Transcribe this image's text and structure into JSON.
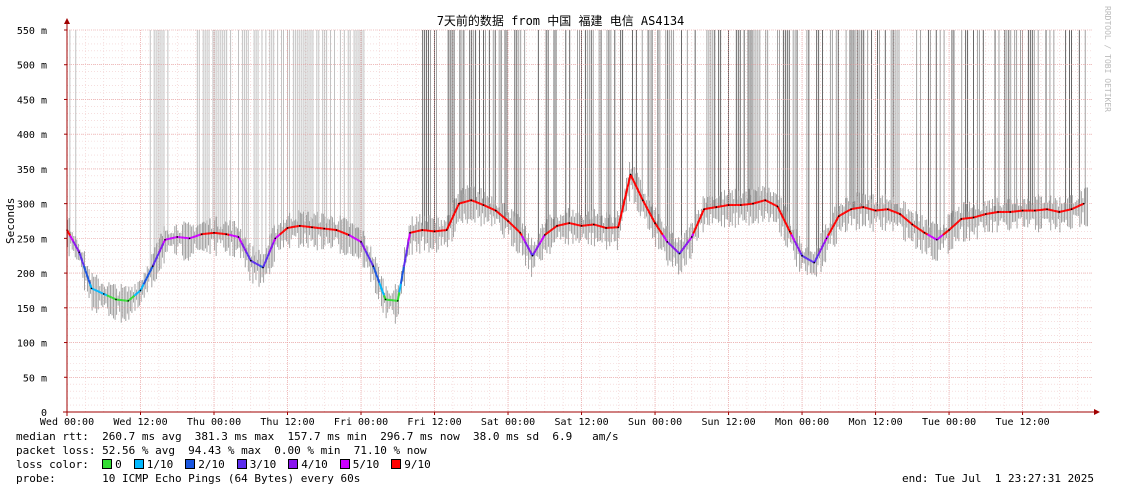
{
  "chart_data": {
    "type": "line",
    "title": "7天前的数据 from 中国 福建 电信 AS4134",
    "ylabel": "Seconds",
    "ylim": [
      0,
      0.55
    ],
    "y_ticks": [
      "0",
      "50 m",
      "100 m",
      "150 m",
      "200 m",
      "250 m",
      "300 m",
      "350 m",
      "400 m",
      "450 m",
      "500 m",
      "550 m"
    ],
    "x_ticks": [
      "Wed 00:00",
      "Wed 12:00",
      "Thu 00:00",
      "Thu 12:00",
      "Fri 00:00",
      "Fri 12:00",
      "Sat 00:00",
      "Sat 12:00",
      "Sun 00:00",
      "Sun 12:00",
      "Mon 00:00",
      "Mon 12:00",
      "Tue 00:00",
      "Tue 12:00"
    ],
    "x_hours": [
      0,
      12,
      24,
      36,
      48,
      60,
      72,
      84,
      96,
      108,
      120,
      132,
      144,
      156
    ],
    "xlim_hours": [
      0,
      167.5
    ],
    "grid": true,
    "series": [
      {
        "name": "median rtt",
        "unit": "ms",
        "x_hours": [
          0,
          2,
          4,
          6,
          8,
          10,
          12,
          14,
          16,
          18,
          20,
          22,
          24,
          26,
          28,
          30,
          32,
          34,
          36,
          38,
          40,
          42,
          44,
          46,
          48,
          50,
          52,
          54,
          56,
          58,
          60,
          62,
          64,
          66,
          68,
          70,
          72,
          74,
          76,
          78,
          80,
          82,
          84,
          86,
          88,
          90,
          92,
          94,
          96,
          98,
          100,
          102,
          104,
          106,
          108,
          110,
          112,
          114,
          116,
          118,
          120,
          122,
          124,
          126,
          128,
          130,
          132,
          134,
          136,
          138,
          140,
          142,
          144,
          146,
          148,
          150,
          152,
          154,
          156,
          158,
          160,
          162,
          164,
          166
        ],
        "values": [
          262,
          230,
          178,
          170,
          162,
          160,
          175,
          210,
          248,
          252,
          250,
          256,
          258,
          256,
          252,
          218,
          208,
          250,
          265,
          268,
          266,
          264,
          262,
          255,
          245,
          210,
          162,
          160,
          258,
          262,
          260,
          262,
          300,
          305,
          298,
          290,
          275,
          258,
          225,
          255,
          268,
          272,
          268,
          270,
          265,
          266,
          342,
          305,
          272,
          245,
          228,
          252,
          292,
          295,
          298,
          298,
          300,
          305,
          296,
          260,
          225,
          215,
          250,
          282,
          292,
          295,
          290,
          292,
          285,
          270,
          258,
          248,
          262,
          278,
          280,
          285,
          288,
          288,
          290,
          290,
          292,
          288,
          292,
          300
        ]
      }
    ],
    "loss_colors": [
      {
        "label": "0",
        "color": "#33dd33"
      },
      {
        "label": "1/10",
        "color": "#00b8ff"
      },
      {
        "label": "2/10",
        "color": "#1a56e0"
      },
      {
        "label": "3/10",
        "color": "#5c2eee"
      },
      {
        "label": "4/10",
        "color": "#8a15ee"
      },
      {
        "label": "5/10",
        "color": "#cc00ff"
      },
      {
        "label": "9/10",
        "color": "#ff0000"
      }
    ],
    "spike_color": "#888888",
    "axis_color": "#a00000",
    "grid_color": "#e89a9a"
  },
  "legend": {
    "median_row": "median rtt:  260.7 ms avg  381.3 ms max  157.7 ms min  296.7 ms now  38.0 ms sd  6.9   am/s",
    "packet_row": "packet loss: 52.56 % avg  94.43 % max  0.00 % min  71.10 % now",
    "loss_label": "loss color:  ",
    "probe_row": "probe:       10 ICMP Echo Pings (64 Bytes) every 60s",
    "end_text": "end: Tue Jul  1 23:27:31 2025"
  },
  "watermark": "RRDTOOL / TOBI OETIKER"
}
